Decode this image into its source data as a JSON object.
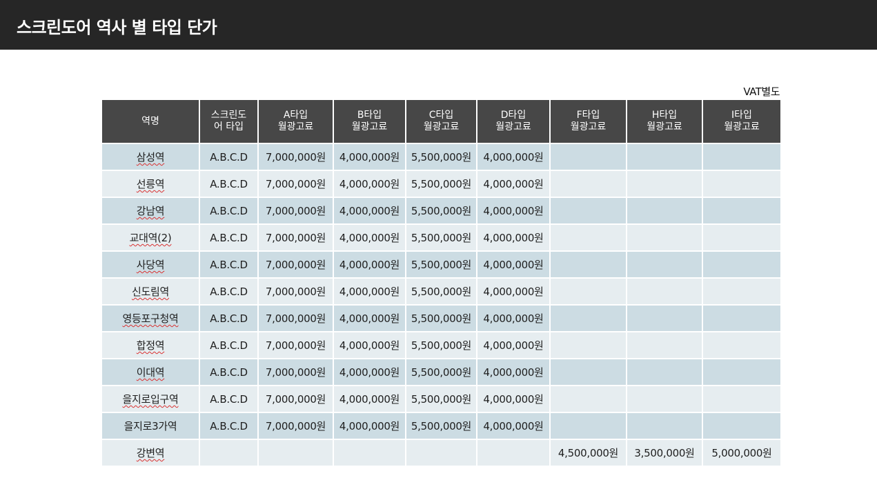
{
  "header": {
    "title": "스크린도어 역사 별 타입 단가"
  },
  "note": "VAT별도",
  "table": {
    "columns": [
      {
        "line1": "역명",
        "line2": ""
      },
      {
        "line1": "스크린도",
        "line2": "어 타입"
      },
      {
        "line1": "A타입",
        "line2": "월광고료"
      },
      {
        "line1": "B타입",
        "line2": "월광고료"
      },
      {
        "line1": "C타입",
        "line2": "월광고료"
      },
      {
        "line1": "D타입",
        "line2": "월광고료"
      },
      {
        "line1": "F타입",
        "line2": "월광고료"
      },
      {
        "line1": "H타입",
        "line2": "월광고료"
      },
      {
        "line1": "I타입",
        "line2": "월광고료"
      }
    ],
    "rows": [
      [
        "삼성역",
        "A.B.C.D",
        "7,000,000원",
        "4,000,000원",
        "5,500,000원",
        "4,000,000원",
        "",
        "",
        ""
      ],
      [
        "선릉역",
        "A.B.C.D",
        "7,000,000원",
        "4,000,000원",
        "5,500,000원",
        "4,000,000원",
        "",
        "",
        ""
      ],
      [
        "강남역",
        "A.B.C.D",
        "7,000,000원",
        "4,000,000원",
        "5,500,000원",
        "4,000,000원",
        "",
        "",
        ""
      ],
      [
        "교대역(2)",
        "A.B.C.D",
        "7,000,000원",
        "4,000,000원",
        "5,500,000원",
        "4,000,000원",
        "",
        "",
        ""
      ],
      [
        "사당역",
        "A.B.C.D",
        "7,000,000원",
        "4,000,000원",
        "5,500,000원",
        "4,000,000원",
        "",
        "",
        ""
      ],
      [
        "신도림역",
        "A.B.C.D",
        "7,000,000원",
        "4,000,000원",
        "5,500,000원",
        "4,000,000원",
        "",
        "",
        ""
      ],
      [
        "영등포구청역",
        "A.B.C.D",
        "7,000,000원",
        "4,000,000원",
        "5,500,000원",
        "4,000,000원",
        "",
        "",
        ""
      ],
      [
        "합정역",
        "A.B.C.D",
        "7,000,000원",
        "4,000,000원",
        "5,500,000원",
        "4,000,000원",
        "",
        "",
        ""
      ],
      [
        "이대역",
        "A.B.C.D",
        "7,000,000원",
        "4,000,000원",
        "5,500,000원",
        "4,000,000원",
        "",
        "",
        ""
      ],
      [
        "을지로입구역",
        "A.B.C.D",
        "7,000,000원",
        "4,000,000원",
        "5,500,000원",
        "4,000,000원",
        "",
        "",
        ""
      ],
      [
        "을지로3가역",
        "A.B.C.D",
        "7,000,000원",
        "4,000,000원",
        "5,500,000원",
        "4,000,000원",
        "",
        "",
        ""
      ],
      [
        "강변역",
        "",
        "",
        "",
        "",
        "",
        "4,500,000원",
        "3,500,000원",
        "5,000,000원"
      ]
    ]
  },
  "colors": {
    "header_bg": "#262626",
    "table_header_bg": "#474747",
    "row_dark": "#ccdce3",
    "row_light": "#e6edf0",
    "spellcheck_underline": "#d93030"
  }
}
